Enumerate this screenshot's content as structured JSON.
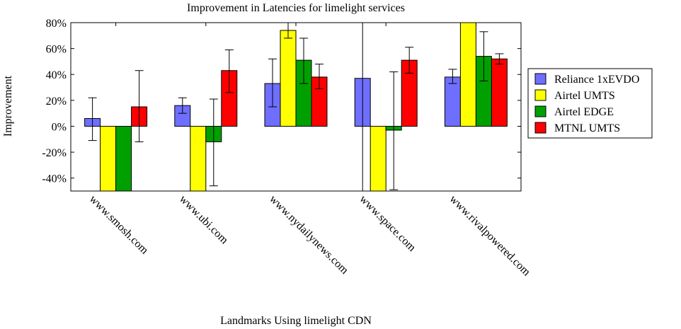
{
  "chart_data": {
    "type": "bar",
    "title": "Improvement in Latencies for limelight services",
    "xlabel": "Landmarks Using limelight CDN",
    "ylabel": "Improvement",
    "ylim": [
      -50,
      80
    ],
    "yticks": [
      -40,
      -20,
      0,
      20,
      40,
      60,
      80
    ],
    "ytick_labels": [
      "-40%",
      "-20%",
      "0%",
      "20%",
      "40%",
      "60%",
      "80%"
    ],
    "categories": [
      "www.smosh.com",
      "www.ubi.com",
      "www.nydailynews.com",
      "www.space.com",
      "www.rivalpowered.com"
    ],
    "legend_position": "right",
    "grid": false,
    "series": [
      {
        "name": "Reliance 1xEVDO",
        "color": "#6f6fff",
        "values": [
          6,
          16,
          33,
          37,
          38
        ],
        "err_low": [
          -11,
          10,
          15,
          -50,
          33
        ],
        "err_high": [
          22,
          22,
          52,
          null,
          44
        ]
      },
      {
        "name": "Airtel UMTS",
        "color": "#ffff00",
        "values": [
          -50,
          -50,
          74,
          -50,
          80
        ],
        "err_low": [
          null,
          null,
          68,
          null,
          null
        ],
        "err_high": [
          null,
          null,
          80,
          null,
          null
        ]
      },
      {
        "name": "Airtel EDGE",
        "color": "#00a000",
        "values": [
          -50,
          -12,
          51,
          -3,
          54
        ],
        "err_low": [
          null,
          -46,
          33,
          -49,
          35
        ],
        "err_high": [
          null,
          21,
          68,
          42,
          73
        ]
      },
      {
        "name": "MTNL UMTS",
        "color": "#ff0000",
        "values": [
          15,
          43,
          38,
          51,
          52
        ],
        "err_low": [
          -12,
          26,
          29,
          41,
          48
        ],
        "err_high": [
          43,
          59,
          48,
          61,
          56
        ]
      }
    ]
  }
}
